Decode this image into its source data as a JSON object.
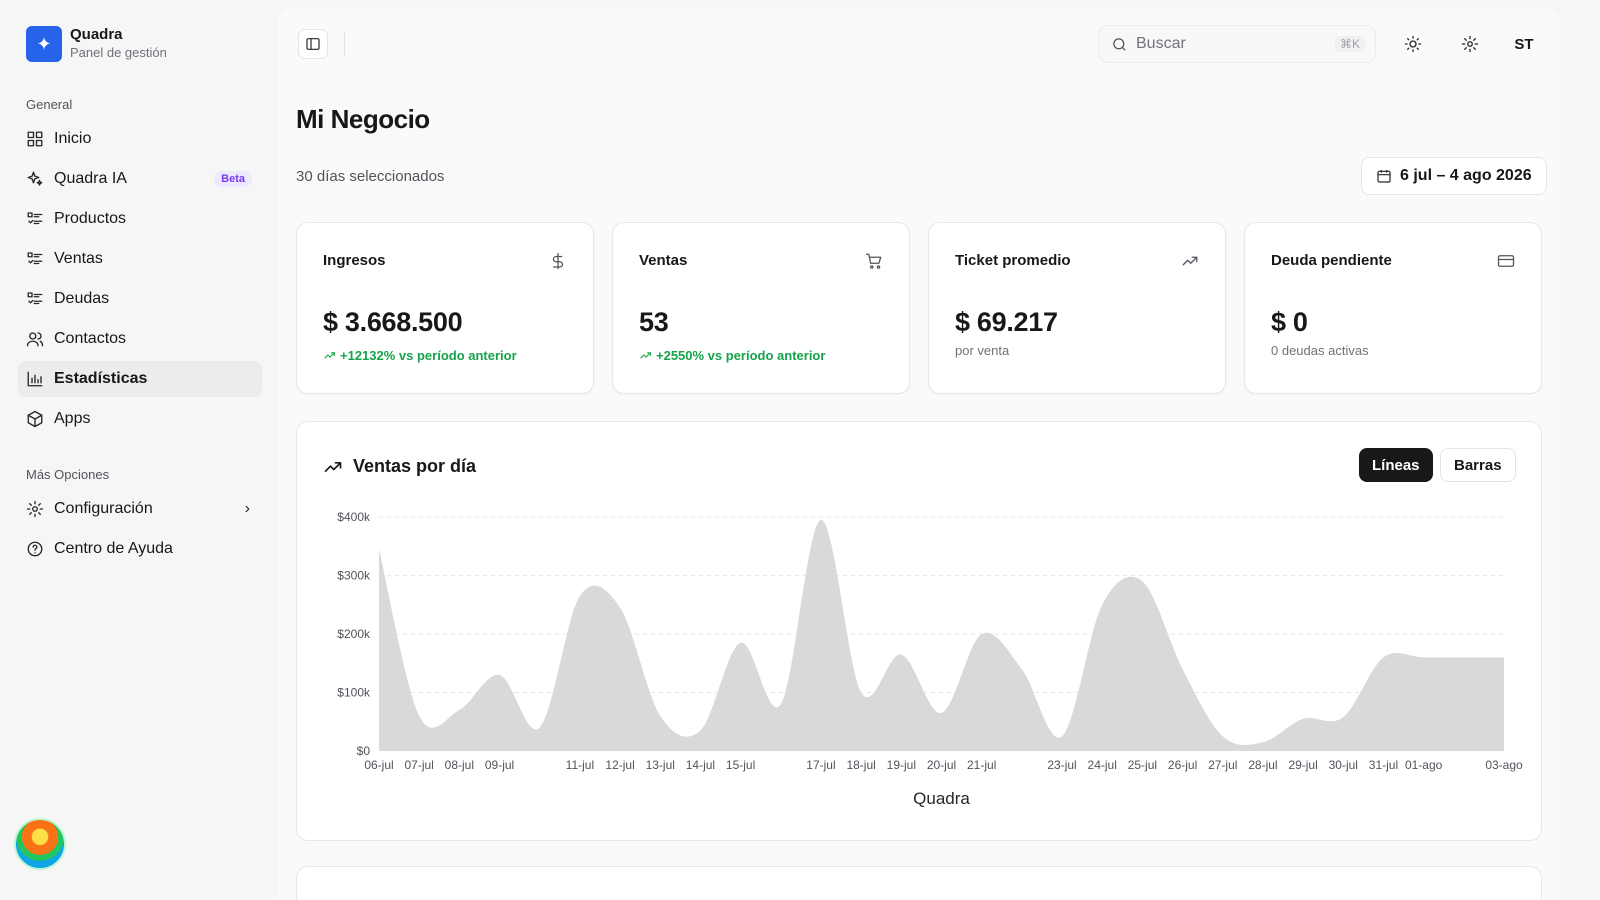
{
  "brand": {
    "name": "Quadra",
    "subtitle": "Panel de gestión",
    "logo_icon": "sparkle-icon",
    "accent": "#2563eb"
  },
  "sidebar": {
    "group_general": "General",
    "items": [
      {
        "label": "Inicio",
        "icon": "grid-icon"
      },
      {
        "label": "Quadra IA",
        "icon": "sparkles-icon",
        "badge": "Beta"
      },
      {
        "label": "Productos",
        "icon": "list-icon"
      },
      {
        "label": "Ventas",
        "icon": "list-icon"
      },
      {
        "label": "Deudas",
        "icon": "list-icon"
      },
      {
        "label": "Contactos",
        "icon": "users-icon"
      },
      {
        "label": "Estadísticas",
        "icon": "bar-chart-icon",
        "active": true
      },
      {
        "label": "Apps",
        "icon": "box-icon"
      }
    ],
    "group_more": "Más Opciones",
    "more_items": [
      {
        "label": "Configuración",
        "icon": "gear-icon"
      },
      {
        "label": "Centro de Ayuda",
        "icon": "help-circle-icon"
      }
    ]
  },
  "topbar": {
    "search_placeholder": "Buscar",
    "search_shortcut": "⌘K",
    "user_initials": "ST"
  },
  "page": {
    "title": "Mi Negocio",
    "subtitle": "30 días seleccionados",
    "date_range": "6 jul – 4 ago 2026"
  },
  "cards": [
    {
      "title": "Ingresos",
      "icon": "dollar-icon",
      "value": "$ 3.668.500",
      "delta": "+12132% vs período anterior"
    },
    {
      "title": "Ventas",
      "icon": "cart-icon",
      "value": "53",
      "delta": "+2550% vs período anterior"
    },
    {
      "title": "Ticket promedio",
      "icon": "trending-up-icon",
      "value": "$ 69.217",
      "note": "por venta"
    },
    {
      "title": "Deuda pendiente",
      "icon": "credit-card-icon",
      "value": "$ 0",
      "note": "0 deudas activas"
    }
  ],
  "chart": {
    "title": "Ventas por día",
    "toggle_lines": "Líneas",
    "toggle_bars": "Barras",
    "active_toggle": "Líneas"
  },
  "chart_data": {
    "type": "area",
    "xlabel": "Quadra",
    "ylabel": "",
    "ylim": [
      0,
      400000
    ],
    "y_ticks": [
      "$0",
      "$100k",
      "$200k",
      "$300k",
      "$400k"
    ],
    "y_tick_values": [
      0,
      100000,
      200000,
      300000,
      400000
    ],
    "x_tick_labels": [
      "06-jul",
      "07-jul",
      "08-jul",
      "09-jul",
      "11-jul",
      "12-jul",
      "13-jul",
      "14-jul",
      "15-jul",
      "17-jul",
      "18-jul",
      "19-jul",
      "20-jul",
      "21-jul",
      "23-jul",
      "24-jul",
      "25-jul",
      "26-jul",
      "27-jul",
      "28-jul",
      "29-jul",
      "30-jul",
      "31-jul",
      "01-ago",
      "03-ago"
    ],
    "x": [
      "06-jul",
      "07-jul",
      "08-jul",
      "09-jul",
      "10-jul",
      "11-jul",
      "12-jul",
      "13-jul",
      "14-jul",
      "15-jul",
      "16-jul",
      "17-jul",
      "18-jul",
      "19-jul",
      "20-jul",
      "21-jul",
      "22-jul",
      "23-jul",
      "24-jul",
      "25-jul",
      "26-jul",
      "27-jul",
      "28-jul",
      "29-jul",
      "30-jul",
      "31-jul",
      "01-ago",
      "02-ago",
      "03-ago"
    ],
    "values": [
      345000,
      60000,
      70000,
      130000,
      40000,
      265000,
      245000,
      60000,
      35000,
      185000,
      80000,
      395000,
      100000,
      165000,
      65000,
      200000,
      140000,
      25000,
      250000,
      290000,
      140000,
      25000,
      15000,
      55000,
      58000,
      160000,
      160000,
      160000,
      160000
    ],
    "series_color": "#d9d9d9",
    "grid": true
  }
}
